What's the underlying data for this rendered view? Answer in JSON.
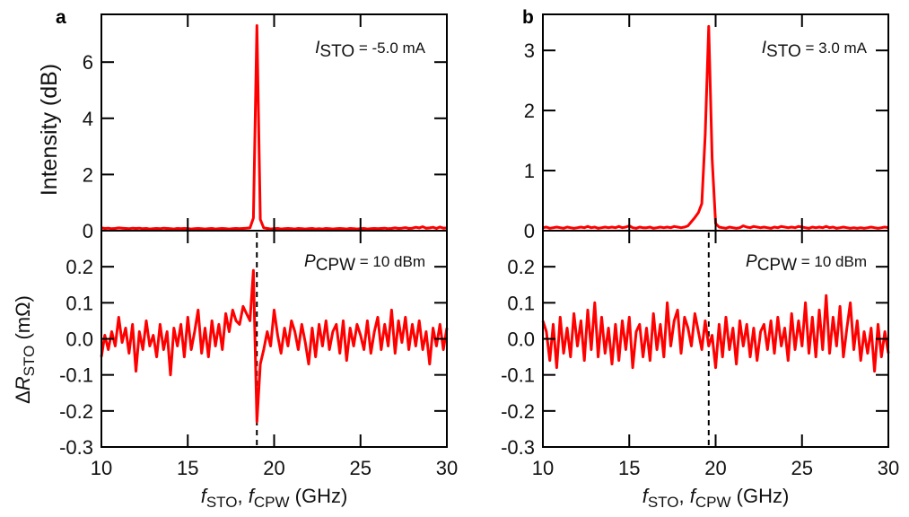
{
  "chart_data": [
    {
      "panel_label": "a",
      "type": "line",
      "x": [
        10.0,
        10.2,
        10.4,
        10.6,
        10.8,
        11.0,
        11.2,
        11.4,
        11.6,
        11.8,
        12.0,
        12.2,
        12.4,
        12.6,
        12.8,
        13.0,
        13.2,
        13.4,
        13.6,
        13.8,
        14.0,
        14.2,
        14.4,
        14.6,
        14.8,
        15.0,
        15.2,
        15.4,
        15.6,
        15.8,
        16.0,
        16.2,
        16.4,
        16.6,
        16.8,
        17.0,
        17.2,
        17.4,
        17.6,
        17.8,
        18.0,
        18.2,
        18.4,
        18.6,
        18.8,
        19.0,
        19.2,
        19.4,
        19.6,
        19.8,
        20.0,
        20.2,
        20.4,
        20.6,
        20.8,
        21.0,
        21.2,
        21.4,
        21.6,
        21.8,
        22.0,
        22.2,
        22.4,
        22.6,
        22.8,
        23.0,
        23.2,
        23.4,
        23.6,
        23.8,
        24.0,
        24.2,
        24.4,
        24.6,
        24.8,
        25.0,
        25.2,
        25.4,
        25.6,
        25.8,
        26.0,
        26.2,
        26.4,
        26.6,
        26.8,
        27.0,
        27.2,
        27.4,
        27.6,
        27.8,
        28.0,
        28.2,
        28.4,
        28.6,
        28.8,
        29.0,
        29.2,
        29.4,
        29.6,
        29.8,
        30.0
      ],
      "xlabel": {
        "f1": "f",
        "s1": "STO",
        "sep": ", ",
        "f2": "f",
        "s2": "CPW",
        "unit": " (GHz)"
      },
      "xlim": [
        10,
        30
      ],
      "x_ticks": [
        "10",
        "15",
        "20",
        "25",
        "30"
      ],
      "x_tick_values": [
        10,
        15,
        20,
        25,
        30
      ],
      "line_color": "#ff0000",
      "marker_x": 19.0,
      "top": {
        "ylabel": "Intensity (dB)",
        "ylim": [
          0,
          7.7
        ],
        "y_ticks": [
          "0",
          "2",
          "4",
          "6"
        ],
        "y_tick_values": [
          0,
          2,
          4,
          6
        ],
        "annotation": {
          "var": "I",
          "sub": "STO",
          "rest": " = -5.0 mA"
        },
        "values": [
          0.1,
          0.08,
          0.09,
          0.07,
          0.08,
          0.1,
          0.09,
          0.08,
          0.07,
          0.09,
          0.08,
          0.09,
          0.07,
          0.08,
          0.06,
          0.07,
          0.08,
          0.07,
          0.09,
          0.08,
          0.07,
          0.06,
          0.08,
          0.07,
          0.08,
          0.07,
          0.06,
          0.07,
          0.08,
          0.07,
          0.06,
          0.07,
          0.08,
          0.06,
          0.07,
          0.08,
          0.07,
          0.06,
          0.07,
          0.08,
          0.07,
          0.08,
          0.09,
          0.1,
          0.45,
          7.3,
          0.4,
          0.1,
          0.08,
          0.06,
          0.07,
          0.08,
          0.06,
          0.07,
          0.08,
          0.07,
          0.06,
          0.08,
          0.07,
          0.06,
          0.07,
          0.08,
          0.06,
          0.07,
          0.06,
          0.08,
          0.07,
          0.06,
          0.07,
          0.08,
          0.07,
          0.06,
          0.08,
          0.07,
          0.06,
          0.07,
          0.08,
          0.06,
          0.07,
          0.08,
          0.07,
          0.08,
          0.09,
          0.07,
          0.08,
          0.1,
          0.08,
          0.09,
          0.11,
          0.08,
          0.09,
          0.12,
          0.1,
          0.14,
          0.09,
          0.1,
          0.12,
          0.08,
          0.13,
          0.09,
          0.1
        ]
      },
      "bottom": {
        "ylabel": {
          "delta": "Δ",
          "var": "R",
          "sub": "STO",
          "unit": " (mΩ)"
        },
        "ylim": [
          -0.3,
          0.3
        ],
        "y_ticks": [
          "0.2",
          "0.1",
          "0.0",
          "-0.1",
          "-0.2",
          "-0.3"
        ],
        "y_tick_values": [
          0.2,
          0.1,
          0.0,
          -0.1,
          -0.2,
          -0.3
        ],
        "annotation": {
          "var": "P",
          "sub": "CPW",
          "rest": " = 10 dBm"
        },
        "values": [
          -0.05,
          0.01,
          -0.03,
          0.02,
          -0.02,
          0.06,
          -0.01,
          0.03,
          -0.04,
          0.04,
          -0.09,
          0.02,
          -0.03,
          0.05,
          -0.02,
          0.01,
          -0.05,
          0.04,
          -0.03,
          0.02,
          -0.1,
          0.03,
          -0.02,
          0.04,
          -0.05,
          0.06,
          -0.03,
          0.02,
          0.08,
          -0.04,
          0.03,
          -0.05,
          0.05,
          -0.02,
          0.04,
          -0.03,
          0.07,
          0.02,
          0.08,
          0.05,
          0.04,
          0.09,
          0.07,
          0.05,
          0.19,
          -0.23,
          -0.07,
          -0.03,
          0.02,
          -0.02,
          0.08,
          0.01,
          -0.04,
          0.03,
          -0.02,
          0.05,
          0.02,
          -0.03,
          0.04,
          -0.01,
          -0.07,
          0.03,
          -0.05,
          0.04,
          -0.02,
          0.05,
          -0.03,
          0.02,
          0.04,
          -0.04,
          0.05,
          -0.06,
          0.03,
          -0.02,
          0.04,
          0.01,
          -0.03,
          0.05,
          -0.04,
          0.02,
          0.06,
          -0.03,
          0.04,
          -0.02,
          0.08,
          -0.04,
          0.05,
          -0.01,
          0.06,
          -0.03,
          0.04,
          -0.02,
          0.05,
          -0.03,
          0.02,
          -0.07,
          0.03,
          -0.02,
          0.04,
          -0.03,
          0.03
        ]
      }
    },
    {
      "panel_label": "b",
      "type": "line",
      "x": [
        10.0,
        10.2,
        10.4,
        10.6,
        10.8,
        11.0,
        11.2,
        11.4,
        11.6,
        11.8,
        12.0,
        12.2,
        12.4,
        12.6,
        12.8,
        13.0,
        13.2,
        13.4,
        13.6,
        13.8,
        14.0,
        14.2,
        14.4,
        14.6,
        14.8,
        15.0,
        15.2,
        15.4,
        15.6,
        15.8,
        16.0,
        16.2,
        16.4,
        16.6,
        16.8,
        17.0,
        17.2,
        17.4,
        17.6,
        17.8,
        18.0,
        18.2,
        18.4,
        18.6,
        18.8,
        19.0,
        19.2,
        19.4,
        19.6,
        19.8,
        20.0,
        20.2,
        20.4,
        20.6,
        20.8,
        21.0,
        21.2,
        21.4,
        21.6,
        21.8,
        22.0,
        22.2,
        22.4,
        22.6,
        22.8,
        23.0,
        23.2,
        23.4,
        23.6,
        23.8,
        24.0,
        24.2,
        24.4,
        24.6,
        24.8,
        25.0,
        25.2,
        25.4,
        25.6,
        25.8,
        26.0,
        26.2,
        26.4,
        26.6,
        26.8,
        27.0,
        27.2,
        27.4,
        27.6,
        27.8,
        28.0,
        28.2,
        28.4,
        28.6,
        28.8,
        29.0,
        29.2,
        29.4,
        29.6,
        29.8,
        30.0
      ],
      "xlabel": {
        "f1": "f",
        "s1": "STO",
        "sep": ", ",
        "f2": "f",
        "s2": "CPW",
        "unit": " (GHz)"
      },
      "xlim": [
        10,
        30
      ],
      "x_ticks": [
        "10",
        "15",
        "20",
        "25",
        "30"
      ],
      "x_tick_values": [
        10,
        15,
        20,
        25,
        30
      ],
      "line_color": "#ff0000",
      "marker_x": 19.6,
      "top": {
        "ylabel": "",
        "ylim": [
          0,
          3.6
        ],
        "y_ticks": [
          "0",
          "1",
          "2",
          "3"
        ],
        "y_tick_values": [
          0,
          1,
          2,
          3
        ],
        "annotation": {
          "var": "I",
          "sub": "STO",
          "rest": " = 3.0 mA"
        },
        "values": [
          0.05,
          0.06,
          0.04,
          0.05,
          0.06,
          0.05,
          0.04,
          0.06,
          0.05,
          0.04,
          0.05,
          0.06,
          0.05,
          0.07,
          0.05,
          0.06,
          0.04,
          0.05,
          0.06,
          0.05,
          0.06,
          0.05,
          0.07,
          0.05,
          0.06,
          0.08,
          0.05,
          0.04,
          0.06,
          0.05,
          0.05,
          0.06,
          0.04,
          0.05,
          0.06,
          0.05,
          0.06,
          0.05,
          0.07,
          0.06,
          0.05,
          0.06,
          0.08,
          0.15,
          0.22,
          0.3,
          0.45,
          1.6,
          3.4,
          1.2,
          0.12,
          0.06,
          0.05,
          0.04,
          0.06,
          0.05,
          0.04,
          0.05,
          0.08,
          0.06,
          0.05,
          0.07,
          0.06,
          0.05,
          0.06,
          0.05,
          0.04,
          0.06,
          0.05,
          0.07,
          0.06,
          0.05,
          0.06,
          0.05,
          0.07,
          0.06,
          0.05,
          0.04,
          0.06,
          0.05,
          0.06,
          0.05,
          0.07,
          0.05,
          0.06,
          0.04,
          0.05,
          0.06,
          0.05,
          0.04,
          0.05,
          0.04,
          0.05,
          0.04,
          0.05,
          0.06,
          0.05,
          0.04,
          0.05,
          0.06,
          0.05
        ]
      },
      "bottom": {
        "ylabel": null,
        "ylim": [
          -0.3,
          0.3
        ],
        "y_ticks": [
          "0.2",
          "0.1",
          "0.0",
          "-0.1",
          "-0.2",
          "-0.3"
        ],
        "y_tick_values": [
          0.2,
          0.1,
          0.0,
          -0.1,
          -0.2,
          -0.3
        ],
        "annotation": {
          "var": "P",
          "sub": "CPW",
          "rest": " = 10 dBm"
        },
        "values": [
          0.05,
          0.02,
          -0.06,
          0.04,
          -0.08,
          0.06,
          -0.04,
          0.03,
          -0.05,
          0.07,
          -0.02,
          0.05,
          -0.06,
          0.08,
          -0.03,
          0.1,
          -0.05,
          0.06,
          -0.04,
          0.03,
          -0.07,
          0.04,
          -0.06,
          0.05,
          -0.03,
          0.06,
          -0.08,
          0.02,
          0.04,
          -0.05,
          0.03,
          -0.06,
          0.07,
          -0.03,
          0.04,
          -0.05,
          0.1,
          -0.02,
          0.05,
          0.08,
          -0.04,
          0.06,
          0.03,
          -0.02,
          0.07,
          0.02,
          -0.03,
          0.05,
          -0.02,
          0.01,
          -0.08,
          0.04,
          -0.05,
          0.06,
          -0.03,
          0.03,
          -0.07,
          0.05,
          -0.02,
          0.04,
          -0.05,
          0.03,
          -0.06,
          0.02,
          0.04,
          -0.03,
          0.05,
          -0.04,
          0.06,
          -0.02,
          0.03,
          -0.06,
          0.07,
          -0.03,
          0.05,
          -0.02,
          0.1,
          -0.04,
          0.06,
          -0.05,
          0.08,
          -0.03,
          0.12,
          -0.04,
          0.06,
          -0.02,
          0.09,
          -0.05,
          0.03,
          0.1,
          -0.03,
          0.05,
          -0.06,
          0.02,
          -0.04,
          0.03,
          -0.09,
          0.04,
          -0.05,
          0.02,
          -0.04
        ]
      }
    }
  ]
}
